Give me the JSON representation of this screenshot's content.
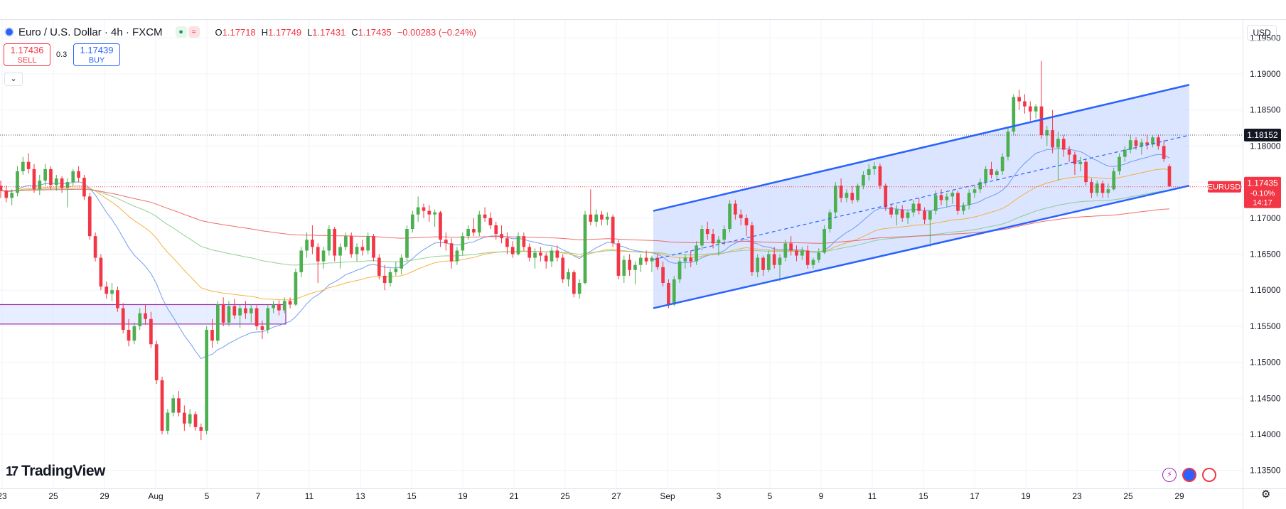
{
  "header": {
    "title": "Euro / U.S. Dollar · 4h · FXCM",
    "ohlc": [
      {
        "k": "O",
        "v": "1.17718"
      },
      {
        "k": "H",
        "v": "1.17749"
      },
      {
        "k": "L",
        "v": "1.17431"
      },
      {
        "k": "C",
        "v": "1.17435"
      }
    ],
    "change": "−0.00283 (−0.24%)",
    "sell_price": "1.17436",
    "sell_label": "SELL",
    "buy_price": "1.17439",
    "buy_label": "BUY",
    "spread": "0.3",
    "currency": "USD",
    "collapse_icon": "chevron-down-icon"
  },
  "branding": {
    "logo_mark": "17",
    "logo_text": "TradingView"
  },
  "chart_data": {
    "type": "candlestick",
    "symbol": "EURUSD",
    "interval": "4h",
    "y_range": [
      1.1325,
      1.1975
    ],
    "y_ticks": [
      "1.13500",
      "1.14000",
      "1.14500",
      "1.15000",
      "1.15500",
      "1.16000",
      "1.16500",
      "1.17000",
      "1.17500",
      "1.18000",
      "1.18500",
      "1.19000",
      "1.19500"
    ],
    "x_ticks": [
      "23",
      "25",
      "29",
      "Aug",
      "5",
      "7",
      "11",
      "13",
      "15",
      "19",
      "21",
      "25",
      "27",
      "Sep",
      "3",
      "5",
      "9",
      "11",
      "15",
      "17",
      "19",
      "23",
      "25",
      "29"
    ],
    "last_price": {
      "symbol": "EURUSD",
      "value": "1.17435",
      "change": "-0.10%",
      "countdown": "14:17"
    },
    "horizontal_line": {
      "value": "1.18152"
    },
    "channel": {
      "lower_start": 1.1575,
      "lower_end": 1.1745,
      "upper_start": 1.171,
      "upper_end": 1.1885
    },
    "colors": {
      "up": "#4caf50",
      "down": "#f23645",
      "channel_line": "#2962ff",
      "channel_fill": "#cfdcff"
    },
    "candles_ohlc": [
      [
        1.1745,
        1.1752,
        1.1728,
        1.1738
      ],
      [
        1.1738,
        1.1745,
        1.1722,
        1.1728
      ],
      [
        1.1728,
        1.174,
        1.1718,
        1.1735
      ],
      [
        1.1735,
        1.1772,
        1.173,
        1.1765
      ],
      [
        1.1765,
        1.1785,
        1.176,
        1.1778
      ],
      [
        1.1778,
        1.179,
        1.1762,
        1.1768
      ],
      [
        1.1768,
        1.1775,
        1.1735,
        1.174
      ],
      [
        1.174,
        1.176,
        1.1732,
        1.1752
      ],
      [
        1.1752,
        1.1775,
        1.1745,
        1.1768
      ],
      [
        1.1768,
        1.1772,
        1.174,
        1.1746
      ],
      [
        1.1746,
        1.176,
        1.1738,
        1.1755
      ],
      [
        1.1755,
        1.1758,
        1.1735,
        1.1742
      ],
      [
        1.1742,
        1.1755,
        1.1715,
        1.175
      ],
      [
        1.175,
        1.1768,
        1.1745,
        1.1765
      ],
      [
        1.1765,
        1.1772,
        1.175,
        1.1756
      ],
      [
        1.1756,
        1.176,
        1.1725,
        1.173
      ],
      [
        1.173,
        1.1735,
        1.167,
        1.1675
      ],
      [
        1.1675,
        1.168,
        1.164,
        1.1645
      ],
      [
        1.1645,
        1.165,
        1.16,
        1.1605
      ],
      [
        1.1605,
        1.1612,
        1.1588,
        1.1595
      ],
      [
        1.1595,
        1.161,
        1.1585,
        1.16
      ],
      [
        1.16,
        1.1605,
        1.157,
        1.1575
      ],
      [
        1.1575,
        1.1582,
        1.154,
        1.1545
      ],
      [
        1.1545,
        1.156,
        1.1522,
        1.153
      ],
      [
        1.153,
        1.1555,
        1.1525,
        1.155
      ],
      [
        1.155,
        1.1575,
        1.1545,
        1.1568
      ],
      [
        1.1568,
        1.158,
        1.1552,
        1.156
      ],
      [
        1.156,
        1.157,
        1.152,
        1.1525
      ],
      [
        1.1525,
        1.153,
        1.147,
        1.1475
      ],
      [
        1.1475,
        1.148,
        1.14,
        1.1405
      ],
      [
        1.1405,
        1.1435,
        1.14,
        1.143
      ],
      [
        1.143,
        1.1455,
        1.1425,
        1.145
      ],
      [
        1.145,
        1.146,
        1.1425,
        1.143
      ],
      [
        1.143,
        1.144,
        1.1405,
        1.1415
      ],
      [
        1.1415,
        1.1435,
        1.141,
        1.1428
      ],
      [
        1.1428,
        1.1432,
        1.1405,
        1.141
      ],
      [
        1.141,
        1.1415,
        1.1392,
        1.1405
      ],
      [
        1.1405,
        1.155,
        1.14,
        1.1545
      ],
      [
        1.1545,
        1.156,
        1.152,
        1.153
      ],
      [
        1.153,
        1.1585,
        1.1525,
        1.158
      ],
      [
        1.158,
        1.159,
        1.155,
        1.1555
      ],
      [
        1.1555,
        1.1585,
        1.155,
        1.1578
      ],
      [
        1.1578,
        1.1588,
        1.156,
        1.1565
      ],
      [
        1.1565,
        1.158,
        1.1548,
        1.1575
      ],
      [
        1.1575,
        1.1585,
        1.156,
        1.1568
      ],
      [
        1.1568,
        1.158,
        1.1555,
        1.1575
      ],
      [
        1.1575,
        1.158,
        1.1545,
        1.155
      ],
      [
        1.155,
        1.1558,
        1.1532,
        1.1545
      ],
      [
        1.1545,
        1.158,
        1.154,
        1.1575
      ],
      [
        1.1575,
        1.1585,
        1.1568,
        1.158
      ],
      [
        1.158,
        1.1586,
        1.1565,
        1.1572
      ],
      [
        1.1572,
        1.159,
        1.1568,
        1.1585
      ],
      [
        1.1585,
        1.159,
        1.1575,
        1.158
      ],
      [
        1.158,
        1.163,
        1.1578,
        1.1625
      ],
      [
        1.1625,
        1.166,
        1.1618,
        1.1655
      ],
      [
        1.1655,
        1.168,
        1.1645,
        1.167
      ],
      [
        1.167,
        1.169,
        1.165,
        1.166
      ],
      [
        1.166,
        1.1665,
        1.161,
        1.164
      ],
      [
        1.164,
        1.166,
        1.163,
        1.1655
      ],
      [
        1.1655,
        1.169,
        1.1648,
        1.1685
      ],
      [
        1.1685,
        1.1688,
        1.164,
        1.1648
      ],
      [
        1.1648,
        1.1665,
        1.163,
        1.166
      ],
      [
        1.166,
        1.168,
        1.1655,
        1.1675
      ],
      [
        1.1675,
        1.168,
        1.1645,
        1.165
      ],
      [
        1.165,
        1.1665,
        1.164,
        1.166
      ],
      [
        1.166,
        1.167,
        1.1648,
        1.1655
      ],
      [
        1.1655,
        1.168,
        1.165,
        1.1675
      ],
      [
        1.1675,
        1.1678,
        1.164,
        1.1645
      ],
      [
        1.1645,
        1.165,
        1.1615,
        1.162
      ],
      [
        1.162,
        1.1635,
        1.16,
        1.161
      ],
      [
        1.161,
        1.163,
        1.1605,
        1.1625
      ],
      [
        1.1625,
        1.164,
        1.162,
        1.163
      ],
      [
        1.163,
        1.165,
        1.1622,
        1.1645
      ],
      [
        1.1645,
        1.169,
        1.164,
        1.1685
      ],
      [
        1.1685,
        1.171,
        1.168,
        1.1705
      ],
      [
        1.1705,
        1.173,
        1.1695,
        1.1715
      ],
      [
        1.1715,
        1.172,
        1.17,
        1.171
      ],
      [
        1.171,
        1.1718,
        1.1695,
        1.1705
      ],
      [
        1.1705,
        1.1712,
        1.1688,
        1.1708
      ],
      [
        1.1708,
        1.171,
        1.166,
        1.167
      ],
      [
        1.167,
        1.168,
        1.1655,
        1.1665
      ],
      [
        1.1665,
        1.1672,
        1.163,
        1.164
      ],
      [
        1.164,
        1.166,
        1.1635,
        1.1655
      ],
      [
        1.1655,
        1.168,
        1.1648,
        1.1675
      ],
      [
        1.1675,
        1.169,
        1.167,
        1.1685
      ],
      [
        1.1685,
        1.17,
        1.1675,
        1.168
      ],
      [
        1.168,
        1.171,
        1.1675,
        1.1705
      ],
      [
        1.1705,
        1.1715,
        1.1695,
        1.17
      ],
      [
        1.17,
        1.1708,
        1.1685,
        1.169
      ],
      [
        1.169,
        1.1695,
        1.167,
        1.1678
      ],
      [
        1.1678,
        1.169,
        1.1665,
        1.1672
      ],
      [
        1.1672,
        1.168,
        1.165,
        1.166
      ],
      [
        1.166,
        1.1668,
        1.1645,
        1.165
      ],
      [
        1.165,
        1.168,
        1.1648,
        1.1675
      ],
      [
        1.1675,
        1.168,
        1.1655,
        1.166
      ],
      [
        1.166,
        1.1665,
        1.164,
        1.1645
      ],
      [
        1.1645,
        1.1658,
        1.163,
        1.1652
      ],
      [
        1.1652,
        1.166,
        1.164,
        1.1648
      ],
      [
        1.1648,
        1.1652,
        1.163,
        1.164
      ],
      [
        1.164,
        1.166,
        1.1632,
        1.1655
      ],
      [
        1.1655,
        1.1662,
        1.164,
        1.1645
      ],
      [
        1.1645,
        1.165,
        1.161,
        1.1615
      ],
      [
        1.1615,
        1.163,
        1.1605,
        1.1625
      ],
      [
        1.1625,
        1.1628,
        1.159,
        1.1595
      ],
      [
        1.1595,
        1.1615,
        1.1588,
        1.161
      ],
      [
        1.161,
        1.171,
        1.1608,
        1.1705
      ],
      [
        1.1705,
        1.174,
        1.169,
        1.1695
      ],
      [
        1.1695,
        1.1712,
        1.1688,
        1.1705
      ],
      [
        1.1705,
        1.171,
        1.169,
        1.1698
      ],
      [
        1.1698,
        1.1708,
        1.169,
        1.1702
      ],
      [
        1.1702,
        1.1705,
        1.166,
        1.1665
      ],
      [
        1.1665,
        1.167,
        1.1615,
        1.162
      ],
      [
        1.162,
        1.1648,
        1.161,
        1.1642
      ],
      [
        1.1642,
        1.165,
        1.162,
        1.1628
      ],
      [
        1.1628,
        1.164,
        1.1608,
        1.1635
      ],
      [
        1.1635,
        1.165,
        1.1625,
        1.1645
      ],
      [
        1.1645,
        1.1655,
        1.1635,
        1.164
      ],
      [
        1.164,
        1.1648,
        1.1625,
        1.1645
      ],
      [
        1.1645,
        1.165,
        1.1628,
        1.1632
      ],
      [
        1.1632,
        1.164,
        1.1605,
        1.161
      ],
      [
        1.161,
        1.1615,
        1.1575,
        1.158
      ],
      [
        1.158,
        1.162,
        1.1578,
        1.1615
      ],
      [
        1.1615,
        1.1645,
        1.161,
        1.164
      ],
      [
        1.164,
        1.165,
        1.163,
        1.1645
      ],
      [
        1.1645,
        1.1655,
        1.1632,
        1.164
      ],
      [
        1.164,
        1.1668,
        1.1635,
        1.1662
      ],
      [
        1.1662,
        1.169,
        1.1655,
        1.1685
      ],
      [
        1.1685,
        1.1695,
        1.167,
        1.1678
      ],
      [
        1.1678,
        1.1685,
        1.1658,
        1.1665
      ],
      [
        1.1665,
        1.1675,
        1.1648,
        1.167
      ],
      [
        1.167,
        1.169,
        1.1662,
        1.1685
      ],
      [
        1.1685,
        1.1725,
        1.168,
        1.172
      ],
      [
        1.172,
        1.1725,
        1.1698,
        1.1705
      ],
      [
        1.1705,
        1.1712,
        1.169,
        1.17
      ],
      [
        1.17,
        1.1705,
        1.1675,
        1.169
      ],
      [
        1.169,
        1.1695,
        1.162,
        1.1625
      ],
      [
        1.1625,
        1.165,
        1.1618,
        1.1645
      ],
      [
        1.1645,
        1.1648,
        1.162,
        1.1628
      ],
      [
        1.1628,
        1.1655,
        1.1625,
        1.165
      ],
      [
        1.165,
        1.166,
        1.163,
        1.1635
      ],
      [
        1.1635,
        1.165,
        1.1612,
        1.1645
      ],
      [
        1.1645,
        1.167,
        1.164,
        1.1665
      ],
      [
        1.1665,
        1.1675,
        1.1648,
        1.1655
      ],
      [
        1.1655,
        1.1662,
        1.164,
        1.1648
      ],
      [
        1.1648,
        1.166,
        1.1642,
        1.1655
      ],
      [
        1.1655,
        1.1662,
        1.163,
        1.1635
      ],
      [
        1.1635,
        1.1645,
        1.163,
        1.1642
      ],
      [
        1.1642,
        1.1658,
        1.1638,
        1.1652
      ],
      [
        1.1652,
        1.169,
        1.165,
        1.1685
      ],
      [
        1.1685,
        1.1712,
        1.168,
        1.1708
      ],
      [
        1.1708,
        1.175,
        1.17,
        1.1745
      ],
      [
        1.1745,
        1.1755,
        1.1722,
        1.1728
      ],
      [
        1.1728,
        1.174,
        1.1722,
        1.1735
      ],
      [
        1.1735,
        1.1745,
        1.172,
        1.1725
      ],
      [
        1.1725,
        1.1748,
        1.1722,
        1.1745
      ],
      [
        1.1745,
        1.1765,
        1.174,
        1.176
      ],
      [
        1.176,
        1.1775,
        1.1752,
        1.1768
      ],
      [
        1.1768,
        1.1778,
        1.176,
        1.1772
      ],
      [
        1.1772,
        1.1776,
        1.174,
        1.1745
      ],
      [
        1.1745,
        1.1748,
        1.171,
        1.1715
      ],
      [
        1.1715,
        1.172,
        1.17,
        1.1705
      ],
      [
        1.1705,
        1.1718,
        1.169,
        1.1712
      ],
      [
        1.1712,
        1.1718,
        1.1695,
        1.17
      ],
      [
        1.17,
        1.1712,
        1.1692,
        1.1708
      ],
      [
        1.1708,
        1.1725,
        1.1702,
        1.172
      ],
      [
        1.172,
        1.1728,
        1.1705,
        1.171
      ],
      [
        1.171,
        1.1715,
        1.1692,
        1.1698
      ],
      [
        1.1698,
        1.1705,
        1.166,
        1.171
      ],
      [
        1.171,
        1.1738,
        1.1705,
        1.1732
      ],
      [
        1.1732,
        1.174,
        1.1718,
        1.1725
      ],
      [
        1.1725,
        1.1735,
        1.1715,
        1.173
      ],
      [
        1.173,
        1.1738,
        1.172,
        1.1735
      ],
      [
        1.1735,
        1.1738,
        1.1705,
        1.171
      ],
      [
        1.171,
        1.1722,
        1.1705,
        1.1718
      ],
      [
        1.1718,
        1.174,
        1.1712,
        1.1735
      ],
      [
        1.1735,
        1.1745,
        1.1728,
        1.174
      ],
      [
        1.174,
        1.1755,
        1.1735,
        1.175
      ],
      [
        1.175,
        1.1772,
        1.1745,
        1.1768
      ],
      [
        1.1768,
        1.1778,
        1.1755,
        1.176
      ],
      [
        1.176,
        1.1768,
        1.1752,
        1.1765
      ],
      [
        1.1765,
        1.179,
        1.176,
        1.1785
      ],
      [
        1.1785,
        1.1825,
        1.178,
        1.182
      ],
      [
        1.182,
        1.1872,
        1.1815,
        1.1868
      ],
      [
        1.1868,
        1.1878,
        1.185,
        1.1862
      ],
      [
        1.1862,
        1.1872,
        1.1845,
        1.1855
      ],
      [
        1.1855,
        1.1862,
        1.1835,
        1.1848
      ],
      [
        1.1848,
        1.1858,
        1.1838,
        1.1855
      ],
      [
        1.1855,
        1.1918,
        1.181,
        1.1815
      ],
      [
        1.1815,
        1.1828,
        1.18,
        1.1822
      ],
      [
        1.1822,
        1.185,
        1.179,
        1.1798
      ],
      [
        1.1798,
        1.182,
        1.1752,
        1.181
      ],
      [
        1.181,
        1.1815,
        1.1785,
        1.1795
      ],
      [
        1.1795,
        1.18,
        1.1778,
        1.1788
      ],
      [
        1.1788,
        1.1792,
        1.176,
        1.1775
      ],
      [
        1.1775,
        1.1785,
        1.1765,
        1.1778
      ],
      [
        1.1778,
        1.1782,
        1.1745,
        1.175
      ],
      [
        1.175,
        1.1755,
        1.1728,
        1.1735
      ],
      [
        1.1735,
        1.1752,
        1.173,
        1.1748
      ],
      [
        1.1748,
        1.1752,
        1.1728,
        1.1735
      ],
      [
        1.1735,
        1.1748,
        1.1728,
        1.174
      ],
      [
        1.174,
        1.177,
        1.1738,
        1.1765
      ],
      [
        1.1765,
        1.179,
        1.176,
        1.1785
      ],
      [
        1.1785,
        1.18,
        1.1778,
        1.1795
      ],
      [
        1.1795,
        1.1815,
        1.179,
        1.1808
      ],
      [
        1.1808,
        1.1812,
        1.1795,
        1.18
      ],
      [
        1.18,
        1.181,
        1.1788,
        1.1805
      ],
      [
        1.1805,
        1.1815,
        1.1795,
        1.1802
      ],
      [
        1.1802,
        1.1815,
        1.1798,
        1.1812
      ],
      [
        1.1812,
        1.1816,
        1.1795,
        1.18
      ],
      [
        1.18,
        1.1808,
        1.1778,
        1.1782
      ],
      [
        1.1772,
        1.1775,
        1.1743,
        1.1744
      ]
    ]
  }
}
